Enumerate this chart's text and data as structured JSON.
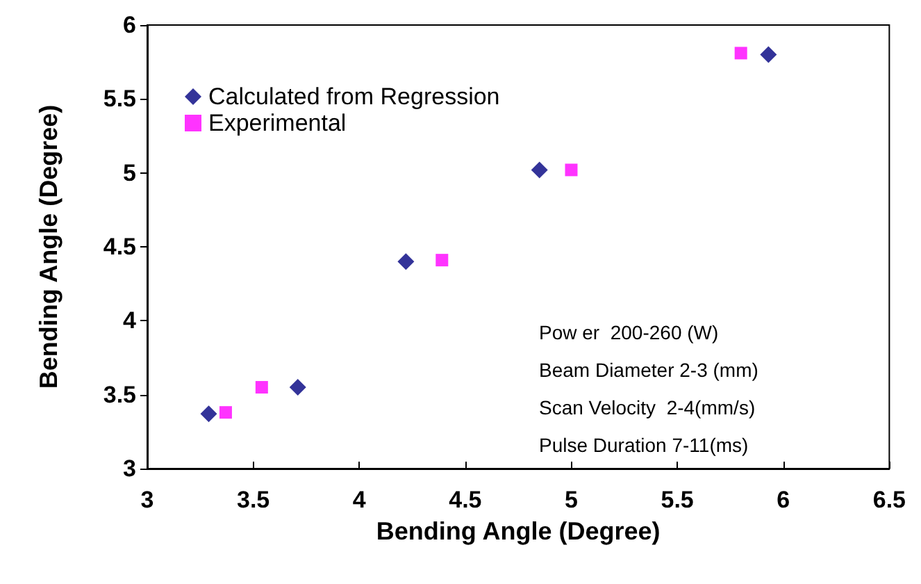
{
  "chart_data": {
    "type": "scatter",
    "xlabel": "Bending Angle (Degree)",
    "ylabel": "Bending Angle (Degree)",
    "xlim": [
      3,
      6.5
    ],
    "xticks": [
      3,
      3.5,
      4,
      4.5,
      5,
      5.5,
      6,
      6.5
    ],
    "ylim": [
      3,
      6
    ],
    "yticks": [
      3,
      3.5,
      4,
      4.5,
      5,
      5.5,
      6
    ],
    "grid": false,
    "legend": "top left",
    "annotations": [
      "Pow er  200-260 (W)",
      "Beam Diameter 2-3 (mm)",
      "Scan Velocity  2-4(mm/s)",
      "Pulse Duration 7-11(ms)"
    ],
    "series": [
      {
        "name": "Calculated from Regression",
        "color": "#000080",
        "marker": "diamond",
        "x": [
          3.29,
          3.71,
          4.22,
          4.85,
          5.93
        ],
        "values": [
          3.37,
          3.55,
          4.4,
          5.02,
          5.8
        ]
      },
      {
        "name": "Experimental",
        "color": "#ff00ff",
        "marker": "square",
        "x": [
          3.37,
          3.54,
          4.39,
          5.0,
          5.8
        ],
        "values": [
          3.38,
          3.55,
          4.41,
          5.02,
          5.81
        ]
      }
    ]
  }
}
